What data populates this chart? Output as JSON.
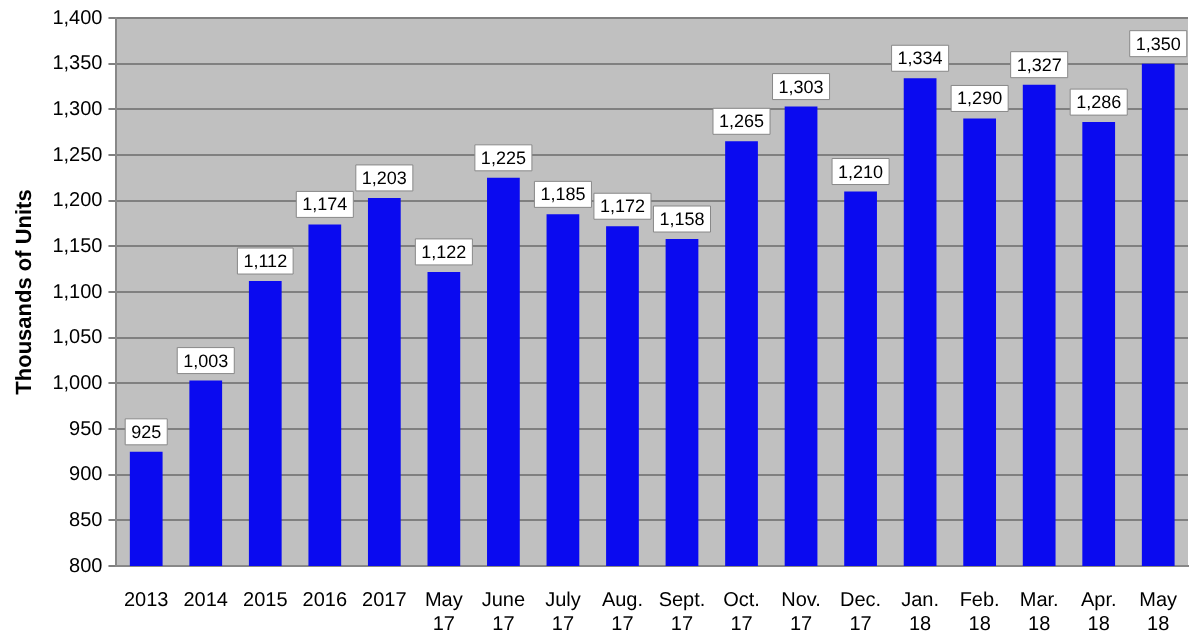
{
  "chart_data": {
    "type": "bar",
    "ylabel": "Thousands of Units",
    "categories": [
      "2013",
      "2014",
      "2015",
      "2016",
      "2017",
      "May 17",
      "June 17",
      "July 17",
      "Aug. 17",
      "Sept. 17",
      "Oct. 17",
      "Nov. 17",
      "Dec. 17",
      "Jan. 18",
      "Feb. 18",
      "Mar. 18",
      "Apr. 18",
      "May 18"
    ],
    "values": [
      925,
      1003,
      1112,
      1174,
      1203,
      1122,
      1225,
      1185,
      1172,
      1158,
      1265,
      1303,
      1210,
      1334,
      1290,
      1327,
      1286,
      1350
    ],
    "value_labels": [
      "925",
      "1,003",
      "1,112",
      "1,174",
      "1,203",
      "1,122",
      "1,225",
      "1,185",
      "1,172",
      "1,158",
      "1,265",
      "1,303",
      "1,210",
      "1,334",
      "1,290",
      "1,327",
      "1,286",
      "1,350"
    ],
    "color": "#0a0af0",
    "ylim": [
      800,
      1400
    ],
    "yticks": [
      {
        "value": 800,
        "label": "800"
      },
      {
        "value": 850,
        "label": "850"
      },
      {
        "value": 900,
        "label": "900"
      },
      {
        "value": 950,
        "label": "950"
      },
      {
        "value": 1000,
        "label": "1,000"
      },
      {
        "value": 1050,
        "label": "1,050"
      },
      {
        "value": 1100,
        "label": "1,100"
      },
      {
        "value": 1150,
        "label": "1,150"
      },
      {
        "value": 1200,
        "label": "1,200"
      },
      {
        "value": 1250,
        "label": "1,250"
      },
      {
        "value": 1300,
        "label": "1,300"
      },
      {
        "value": 1350,
        "label": "1,350"
      },
      {
        "value": 1400,
        "label": "1,400"
      }
    ],
    "grid": "y",
    "legend": false
  }
}
